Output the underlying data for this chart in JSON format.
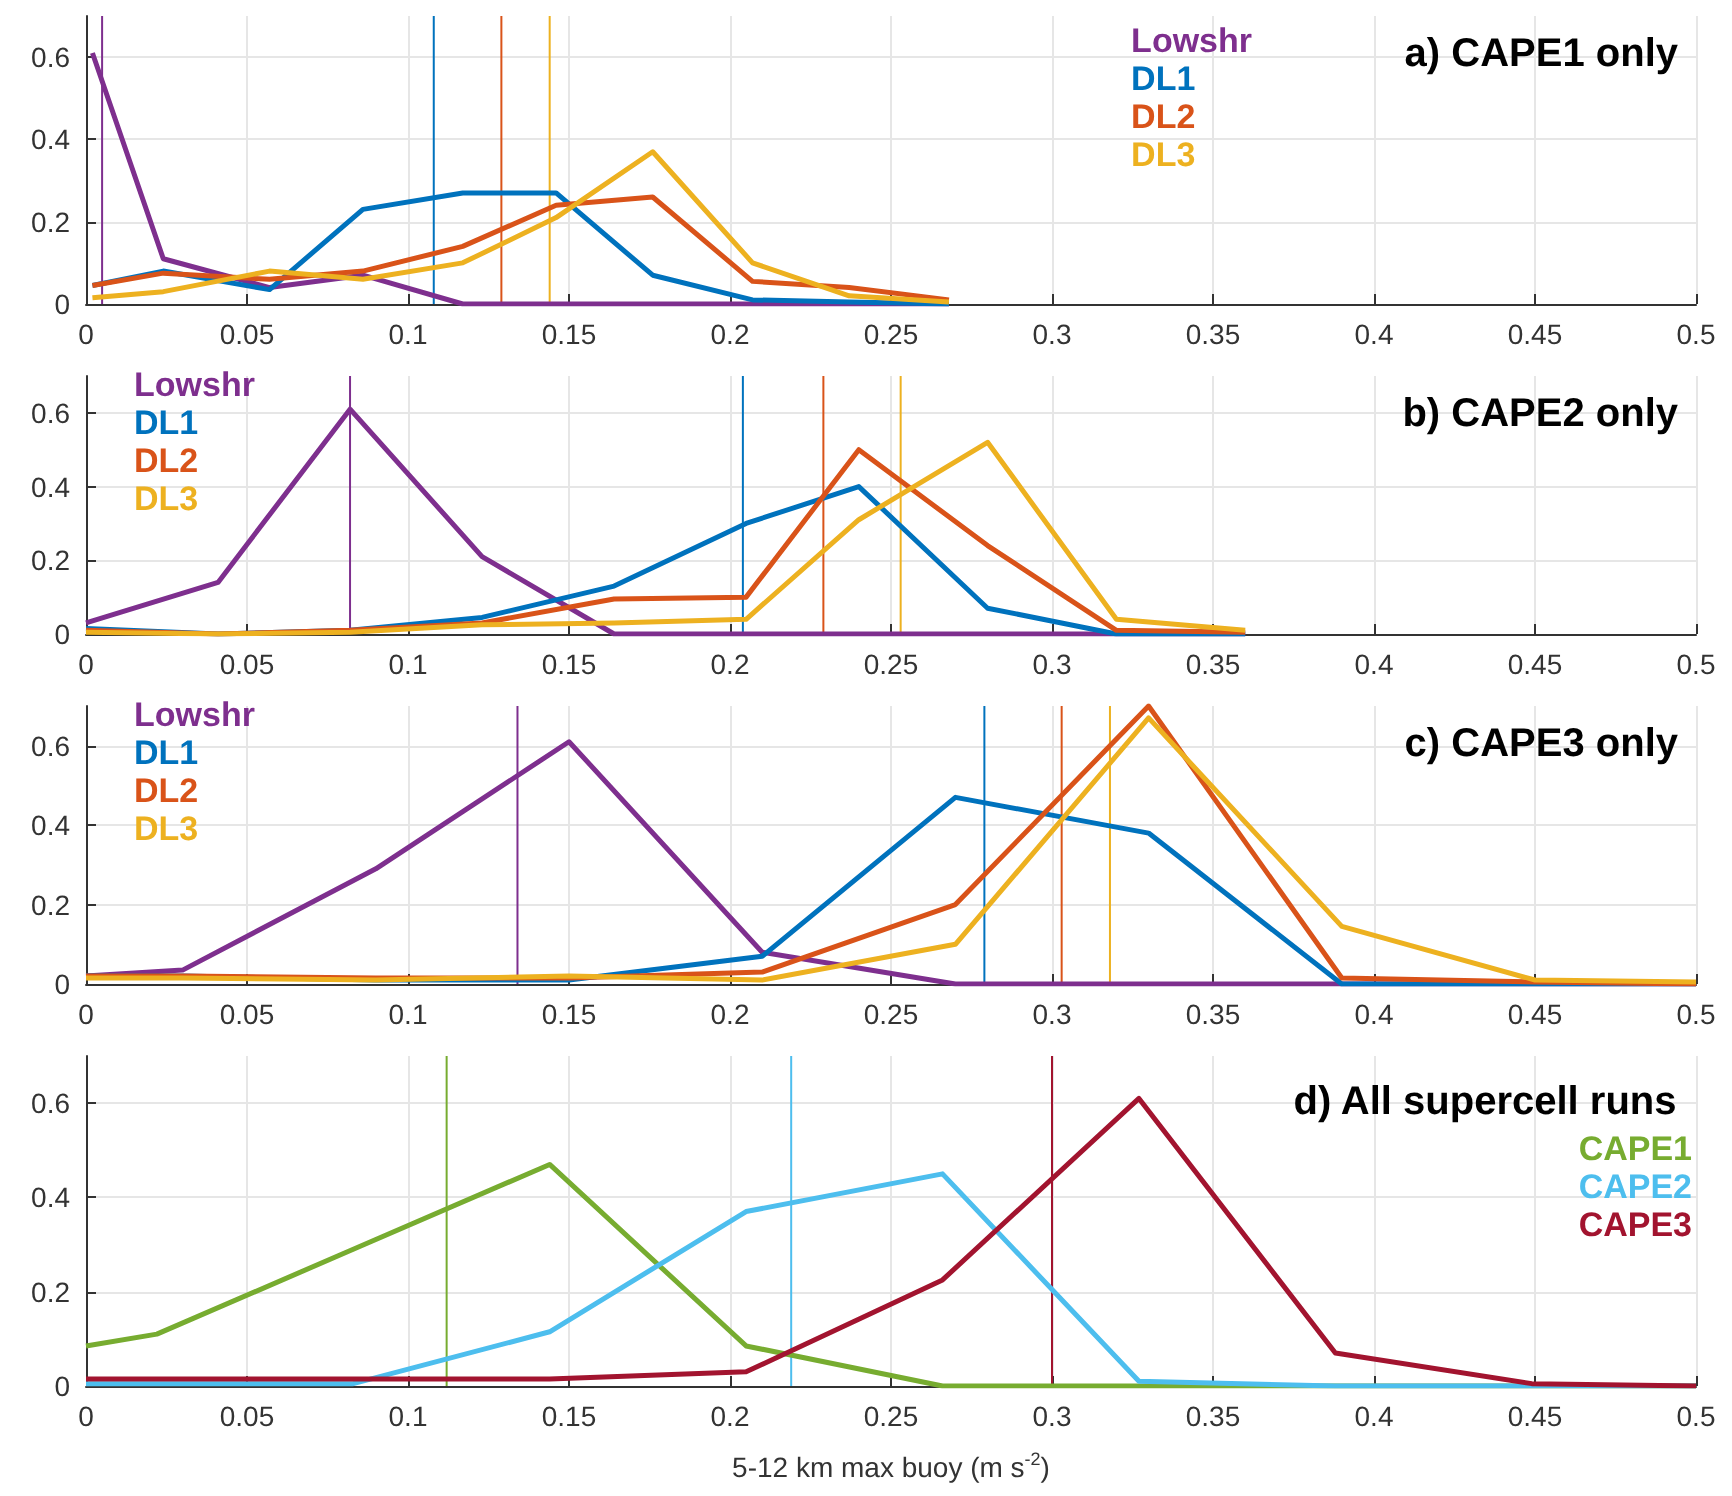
{
  "chart_data": [
    {
      "type": "line",
      "title": "a) CAPE1 only",
      "xlim": [
        0,
        0.5
      ],
      "xticks": [
        0,
        0.05,
        0.1,
        0.15,
        0.2,
        0.25,
        0.3,
        0.35,
        0.4,
        0.45,
        0.5
      ],
      "ylim": [
        0,
        0.7
      ],
      "yticks": [
        0,
        0.2,
        0.4,
        0.6
      ],
      "grid": true,
      "legend": "top right",
      "marker": "none",
      "line_style": "solid",
      "series": [
        {
          "name": "Lowshr",
          "color": "#7e2f8e",
          "x": [
            0.002,
            0.024,
            0.057,
            0.086,
            0.117,
            0.146,
            0.176,
            0.207,
            0.237,
            0.268
          ],
          "values": [
            0.61,
            0.11,
            0.04,
            0.07,
            0,
            0,
            0,
            0,
            0,
            0
          ]
        },
        {
          "name": "DL1",
          "color": "#0072bd",
          "x": [
            0.002,
            0.024,
            0.057,
            0.086,
            0.117,
            0.146,
            0.176,
            0.207,
            0.237,
            0.268
          ],
          "values": [
            0.045,
            0.08,
            0.035,
            0.23,
            0.27,
            0.27,
            0.07,
            0.01,
            0.005,
            0
          ]
        },
        {
          "name": "DL2",
          "color": "#d95319",
          "x": [
            0.002,
            0.024,
            0.057,
            0.086,
            0.117,
            0.146,
            0.176,
            0.207,
            0.237,
            0.268
          ],
          "values": [
            0.045,
            0.075,
            0.06,
            0.08,
            0.14,
            0.24,
            0.26,
            0.055,
            0.04,
            0.01
          ]
        },
        {
          "name": "DL3",
          "color": "#edb120",
          "x": [
            0.002,
            0.024,
            0.057,
            0.086,
            0.117,
            0.146,
            0.176,
            0.207,
            0.237,
            0.268
          ],
          "values": [
            0.015,
            0.03,
            0.08,
            0.06,
            0.1,
            0.21,
            0.37,
            0.1,
            0.02,
            0.005
          ]
        }
      ],
      "ref_lines": [
        {
          "axis": "x",
          "value": 0.005,
          "color": "#7e2f8e"
        },
        {
          "axis": "x",
          "value": 0.108,
          "color": "#0072bd"
        },
        {
          "axis": "x",
          "value": 0.129,
          "color": "#d95319"
        },
        {
          "axis": "x",
          "value": 0.144,
          "color": "#edb120"
        }
      ]
    },
    {
      "type": "line",
      "title": "b) CAPE2 only",
      "xlim": [
        0,
        0.5
      ],
      "xticks": [
        0,
        0.05,
        0.1,
        0.15,
        0.2,
        0.25,
        0.3,
        0.35,
        0.4,
        0.45,
        0.5
      ],
      "ylim": [
        0,
        0.7
      ],
      "yticks": [
        0,
        0.2,
        0.4,
        0.6
      ],
      "grid": true,
      "legend": "top left",
      "marker": "none",
      "line_style": "solid",
      "series": [
        {
          "name": "Lowshr",
          "color": "#7e2f8e",
          "x": [
            0,
            0.041,
            0.082,
            0.123,
            0.164,
            0.205,
            0.24,
            0.28,
            0.32,
            0.36
          ],
          "values": [
            0.03,
            0.14,
            0.61,
            0.21,
            0,
            0,
            0,
            0,
            0,
            0
          ]
        },
        {
          "name": "DL1",
          "color": "#0072bd",
          "x": [
            0,
            0.041,
            0.082,
            0.123,
            0.164,
            0.205,
            0.24,
            0.28,
            0.32,
            0.36
          ],
          "values": [
            0.015,
            0,
            0.01,
            0.045,
            0.13,
            0.3,
            0.4,
            0.07,
            0,
            0
          ]
        },
        {
          "name": "DL2",
          "color": "#d95319",
          "x": [
            0,
            0.041,
            0.082,
            0.123,
            0.164,
            0.205,
            0.24,
            0.28,
            0.32,
            0.36
          ],
          "values": [
            0.01,
            0,
            0.01,
            0.03,
            0.095,
            0.1,
            0.5,
            0.24,
            0.01,
            0.005
          ]
        },
        {
          "name": "DL3",
          "color": "#edb120",
          "x": [
            0,
            0.041,
            0.082,
            0.123,
            0.164,
            0.205,
            0.24,
            0.28,
            0.32,
            0.36
          ],
          "values": [
            0.005,
            0,
            0.005,
            0.025,
            0.03,
            0.04,
            0.31,
            0.52,
            0.04,
            0.01
          ]
        }
      ],
      "ref_lines": [
        {
          "axis": "x",
          "value": 0.082,
          "color": "#7e2f8e"
        },
        {
          "axis": "x",
          "value": 0.204,
          "color": "#0072bd"
        },
        {
          "axis": "x",
          "value": 0.229,
          "color": "#d95319"
        },
        {
          "axis": "x",
          "value": 0.253,
          "color": "#edb120"
        }
      ]
    },
    {
      "type": "line",
      "title": "c) CAPE3 only",
      "xlim": [
        0,
        0.5
      ],
      "xticks": [
        0,
        0.05,
        0.1,
        0.15,
        0.2,
        0.25,
        0.3,
        0.35,
        0.4,
        0.45,
        0.5
      ],
      "ylim": [
        0,
        0.7
      ],
      "yticks": [
        0,
        0.2,
        0.4,
        0.6
      ],
      "grid": true,
      "legend": "top left",
      "marker": "none",
      "line_style": "solid",
      "series": [
        {
          "name": "Lowshr",
          "color": "#7e2f8e",
          "x": [
            0,
            0.03,
            0.09,
            0.15,
            0.21,
            0.27,
            0.33,
            0.39,
            0.45,
            0.5
          ],
          "values": [
            0.02,
            0.035,
            0.29,
            0.61,
            0.08,
            0,
            0,
            0,
            0,
            0
          ]
        },
        {
          "name": "DL1",
          "color": "#0072bd",
          "x": [
            0,
            0.03,
            0.09,
            0.15,
            0.21,
            0.27,
            0.33,
            0.39,
            0.45,
            0.5
          ],
          "values": [
            0.02,
            0.02,
            0.01,
            0.01,
            0.07,
            0.47,
            0.38,
            0,
            0,
            0
          ]
        },
        {
          "name": "DL2",
          "color": "#d95319",
          "x": [
            0,
            0.03,
            0.09,
            0.15,
            0.21,
            0.27,
            0.33,
            0.39,
            0.45,
            0.5
          ],
          "values": [
            0.02,
            0.02,
            0.015,
            0.015,
            0.03,
            0.2,
            0.7,
            0.015,
            0.005,
            0
          ]
        },
        {
          "name": "DL3",
          "color": "#edb120",
          "x": [
            0,
            0.03,
            0.09,
            0.15,
            0.21,
            0.27,
            0.33,
            0.39,
            0.45,
            0.5
          ],
          "values": [
            0.015,
            0.015,
            0.01,
            0.02,
            0.01,
            0.1,
            0.67,
            0.145,
            0.01,
            0.005
          ]
        }
      ],
      "ref_lines": [
        {
          "axis": "x",
          "value": 0.134,
          "color": "#7e2f8e"
        },
        {
          "axis": "x",
          "value": 0.279,
          "color": "#0072bd"
        },
        {
          "axis": "x",
          "value": 0.303,
          "color": "#d95319"
        },
        {
          "axis": "x",
          "value": 0.318,
          "color": "#edb120"
        }
      ]
    },
    {
      "type": "line",
      "title": "d) All supercell runs",
      "xlabel": "5-12 km max buoy (m s$^{-2}$)",
      "xlim": [
        0,
        0.5
      ],
      "xticks": [
        0,
        0.05,
        0.1,
        0.15,
        0.2,
        0.25,
        0.3,
        0.35,
        0.4,
        0.45,
        0.5
      ],
      "ylim": [
        0,
        0.7
      ],
      "yticks": [
        0,
        0.2,
        0.4,
        0.6
      ],
      "grid": true,
      "legend": "right",
      "marker": "none",
      "line_style": "solid",
      "series": [
        {
          "name": "CAPE1",
          "color": "#77ac30",
          "x": [
            0,
            0.022,
            0.083,
            0.144,
            0.205,
            0.266,
            0.327,
            0.388,
            0.449,
            0.5
          ],
          "values": [
            0.085,
            0.11,
            0.29,
            0.47,
            0.085,
            0,
            0,
            0,
            0,
            0
          ]
        },
        {
          "name": "CAPE2",
          "color": "#4dbeee",
          "x": [
            0,
            0.022,
            0.083,
            0.144,
            0.205,
            0.266,
            0.327,
            0.388,
            0.449,
            0.5
          ],
          "values": [
            0.005,
            0.005,
            0.005,
            0.115,
            0.37,
            0.45,
            0.01,
            0,
            0,
            0
          ]
        },
        {
          "name": "CAPE3",
          "color": "#a2142f",
          "x": [
            0,
            0.022,
            0.083,
            0.144,
            0.205,
            0.266,
            0.327,
            0.388,
            0.449,
            0.5
          ],
          "values": [
            0.015,
            0.015,
            0.015,
            0.015,
            0.03,
            0.225,
            0.61,
            0.07,
            0.005,
            0
          ]
        }
      ],
      "ref_lines": [
        {
          "axis": "x",
          "value": 0.112,
          "color": "#77ac30"
        },
        {
          "axis": "x",
          "value": 0.219,
          "color": "#4dbeee"
        },
        {
          "axis": "x",
          "value": 0.3,
          "color": "#a2142f"
        }
      ]
    }
  ]
}
